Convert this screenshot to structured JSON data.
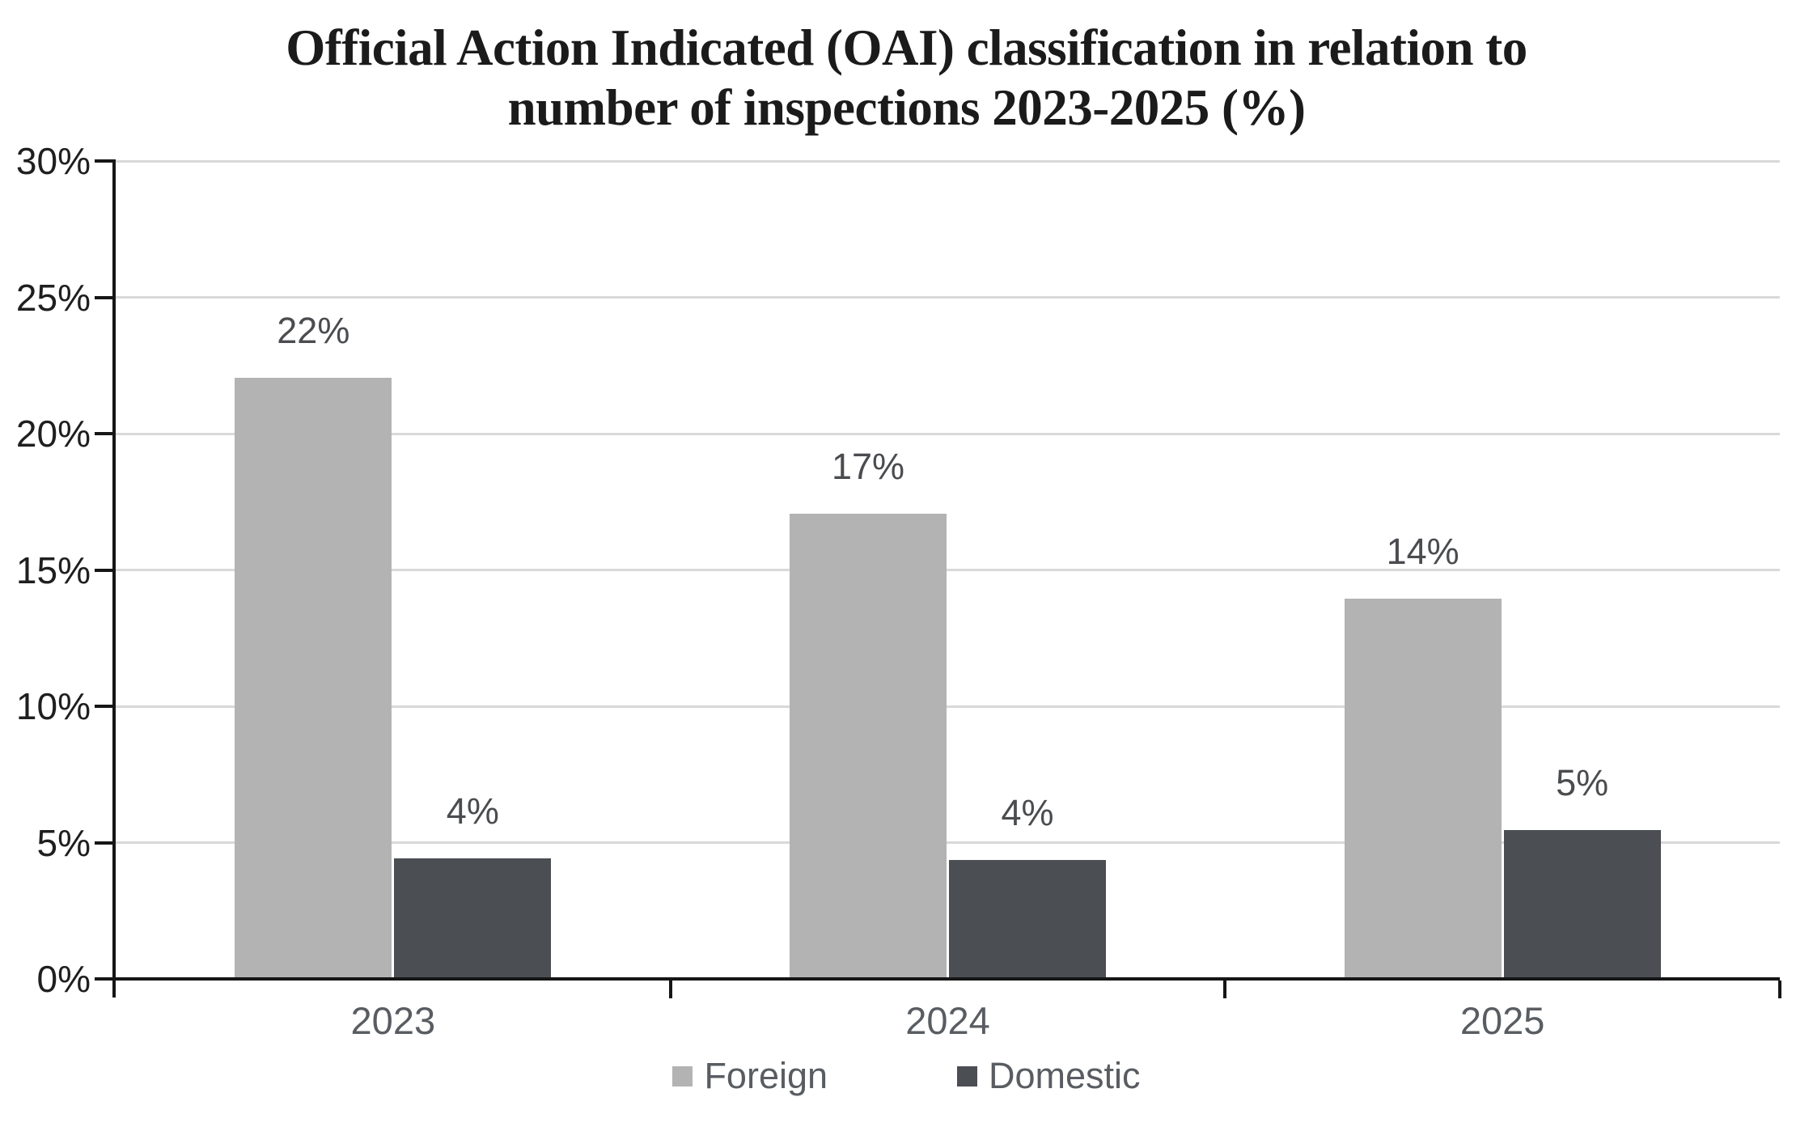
{
  "title": {
    "line1": "Official Action Indicated (OAI) classification in relation to",
    "line2": "number of inspections 2023-2025 (%)"
  },
  "chart_data": {
    "type": "bar",
    "title": "Official Action Indicated (OAI) classification in relation to number of inspections 2023-2025 (%)",
    "categories": [
      "2023",
      "2024",
      "2025"
    ],
    "series": [
      {
        "name": "Foreign",
        "color": "#b3b3b3",
        "values": [
          22,
          17,
          14
        ],
        "values_precise": [
          22,
          17,
          13.9
        ],
        "data_labels": [
          "22%",
          "17%",
          "14%"
        ]
      },
      {
        "name": "Domestic",
        "color": "#4b4e53",
        "values": [
          4,
          4,
          5
        ],
        "values_precise": [
          4.35,
          4.3,
          5.4
        ],
        "data_labels": [
          "4%",
          "4%",
          "5%"
        ]
      }
    ],
    "xlabel": "",
    "ylabel": "",
    "ylim": [
      0,
      30
    ],
    "ytick_step": 5,
    "ytick_labels": [
      "0%",
      "5%",
      "10%",
      "15%",
      "20%",
      "25%",
      "30%"
    ],
    "grid": true,
    "legend_position": "bottom",
    "colors": {
      "axis": "#161616",
      "gridline": "#d9d9d9",
      "ytick_label": "#1f1f1f",
      "data_label": "#4a4c4f",
      "category_label": "#595d62",
      "title": "#1b1b1b",
      "background": "#ffffff"
    }
  },
  "legend": {
    "items": [
      {
        "label": "Foreign",
        "color": "#b3b3b3"
      },
      {
        "label": "Domestic",
        "color": "#4b4e53"
      }
    ]
  }
}
